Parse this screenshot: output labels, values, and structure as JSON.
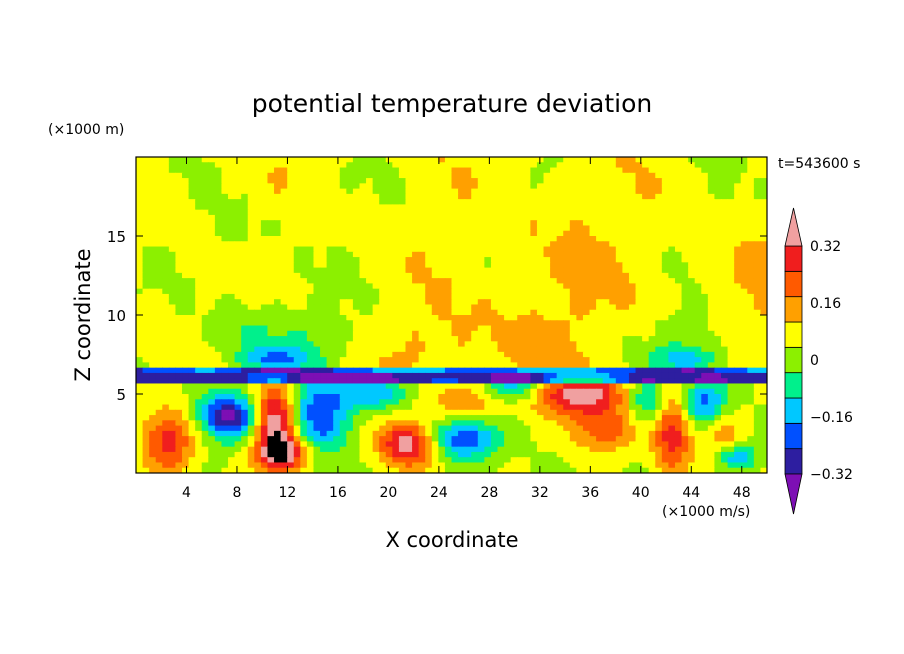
{
  "chart_data": {
    "type": "heatmap",
    "title": "potential temperature deviation",
    "xlabel": "X coordinate",
    "ylabel": "Z coordinate",
    "x_unit": "(×1000 m/s)",
    "y_unit": "(×1000 m)",
    "time_label": "t=543600 s",
    "xlim": [
      0,
      50
    ],
    "ylim": [
      0,
      20
    ],
    "x_ticks": [
      4,
      8,
      12,
      16,
      20,
      24,
      28,
      32,
      36,
      40,
      44,
      48
    ],
    "y_ticks": [
      5,
      10,
      15
    ],
    "colorbar": {
      "levels": [
        -0.4,
        -0.32,
        -0.24,
        -0.16,
        -0.08,
        0,
        0.08,
        0.16,
        0.24,
        0.32,
        0.4
      ],
      "tick_labels": [
        "0.32",
        "0.16",
        "0",
        "−0.16",
        "−0.32"
      ],
      "tick_values": [
        0.32,
        0.16,
        0,
        -0.16,
        -0.32
      ],
      "colors": [
        "#7d0fb4",
        "#2d1ea0",
        "#0050ff",
        "#00c8ff",
        "#00f08c",
        "#8cf000",
        "#ffff00",
        "#ffa000",
        "#ff5a00",
        "#f01e1e",
        "#f0a0a0"
      ],
      "extend": "both"
    }
  }
}
